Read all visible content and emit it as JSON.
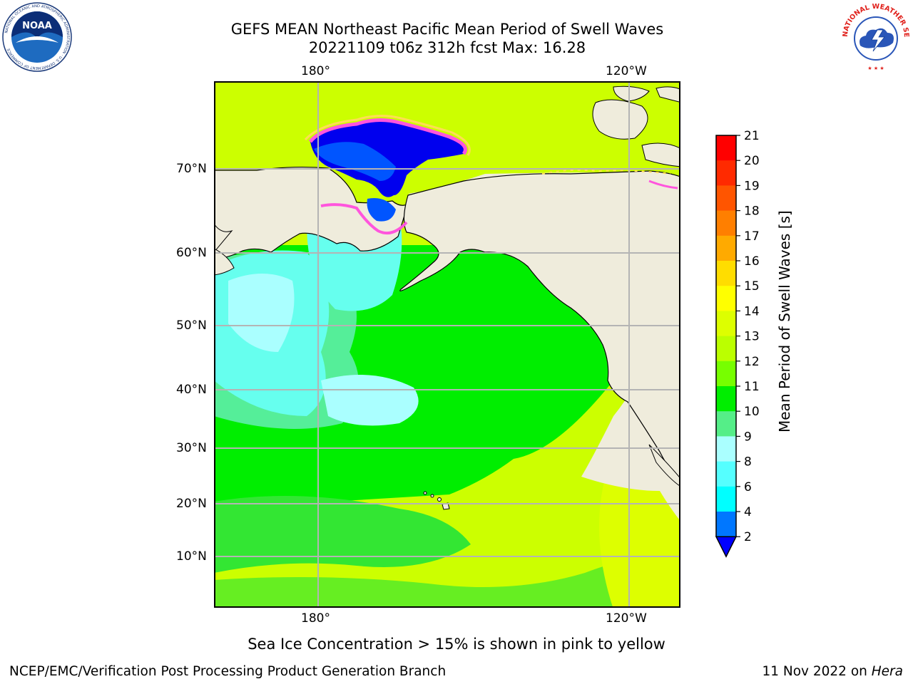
{
  "title": {
    "line1": "GEFS MEAN Northeast Pacific Mean Period of Swell Waves",
    "line2": "20221109 t06z 312h fcst   Max: 16.28"
  },
  "axes": {
    "top_lon": [
      "180°",
      "120°W"
    ],
    "bottom_lon": [
      "180°",
      "120°W"
    ],
    "lat": [
      "70°N",
      "60°N",
      "50°N",
      "40°N",
      "30°N",
      "20°N",
      "10°N"
    ]
  },
  "colorbar": {
    "label": "Mean Period of Swell Waves [s]",
    "ticks": [
      "21",
      "20",
      "19",
      "18",
      "17",
      "16",
      "15",
      "14",
      "13",
      "12",
      "11",
      "10",
      "9",
      "8",
      "6",
      "4",
      "2"
    ],
    "colors": [
      "#ff0000",
      "#ff2a00",
      "#ff5500",
      "#ff7f00",
      "#ffaa00",
      "#ffdd00",
      "#ffff00",
      "#ddff00",
      "#bbff00",
      "#77ff00",
      "#00ee00",
      "#55ee88",
      "#aaffff",
      "#55ffff",
      "#00ffff",
      "#0077ff"
    ],
    "extend_color": "#0000ff"
  },
  "map_colors": {
    "land": "#efecdc",
    "grid": "#b4b4b4",
    "ice_pink": "#ff55dd",
    "ice_yellow": "#ffdd55",
    "arctic_blue": "#0000ee"
  },
  "note": "Sea Ice Concentration > 15% is shown in pink to yellow",
  "footer": {
    "left": "NCEP/EMC/Verification Post Processing Product Generation Branch",
    "date": "11 Nov 2022 on ",
    "machine": "Hera"
  },
  "logos": {
    "noaa_text": "NOAA",
    "noaa_ring": "NATIONAL OCEANIC AND ATMOSPHERIC ADMINISTRATION · U.S. DEPARTMENT OF COMMERCE",
    "nws_ring": "NATIONAL WEATHER SERVICE"
  }
}
